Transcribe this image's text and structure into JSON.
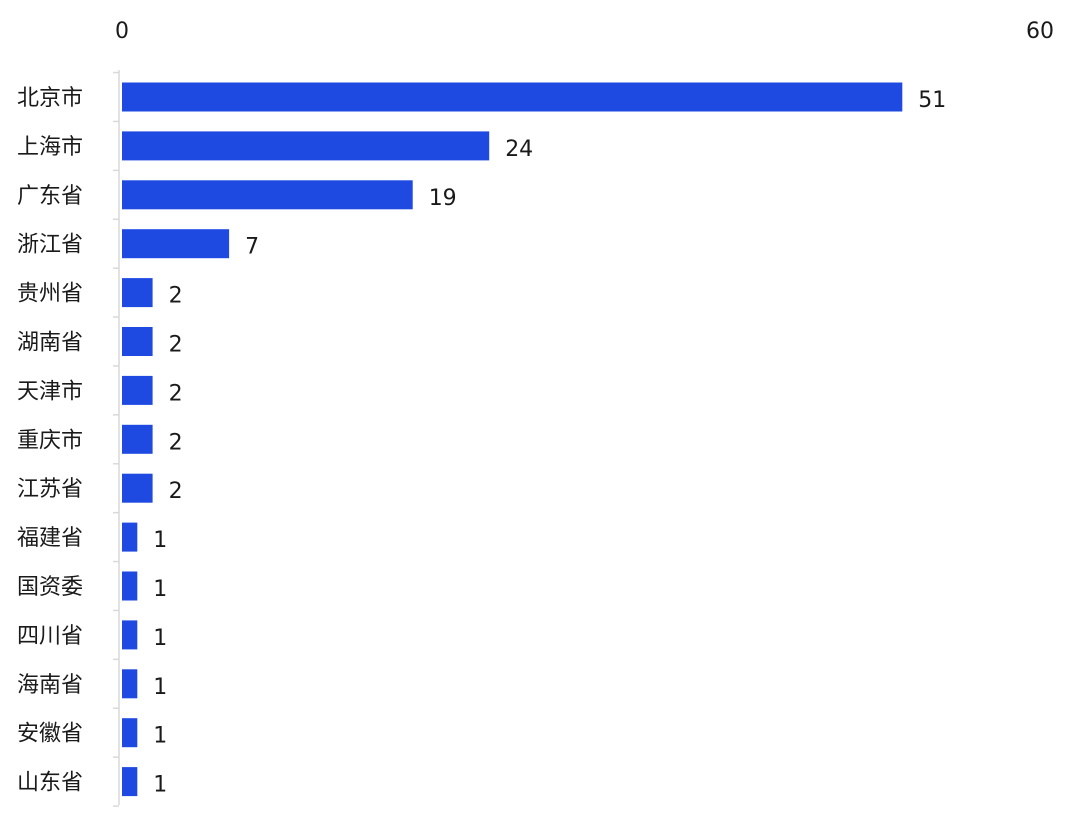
{
  "chart_data": {
    "type": "bar",
    "orientation": "horizontal",
    "categories": [
      "北京市",
      "上海市",
      "广东省",
      "浙江省",
      "贵州省",
      "湖南省",
      "天津市",
      "重庆市",
      "江苏省",
      "福建省",
      "国资委",
      "四川省",
      "海南省",
      "安徽省",
      "山东省"
    ],
    "values": [
      51,
      24,
      19,
      7,
      2,
      2,
      2,
      2,
      2,
      1,
      1,
      1,
      1,
      1,
      1
    ],
    "xlim": [
      0,
      60
    ],
    "x_ticks": [
      "0",
      "60"
    ],
    "x_axis_position": "top",
    "grid": false,
    "legend": "none",
    "bar_color": "#1f4ae2",
    "axis_color": "#d9d9d9",
    "text_color": "#1a1a1a",
    "title": "",
    "xlabel": "",
    "ylabel": ""
  }
}
